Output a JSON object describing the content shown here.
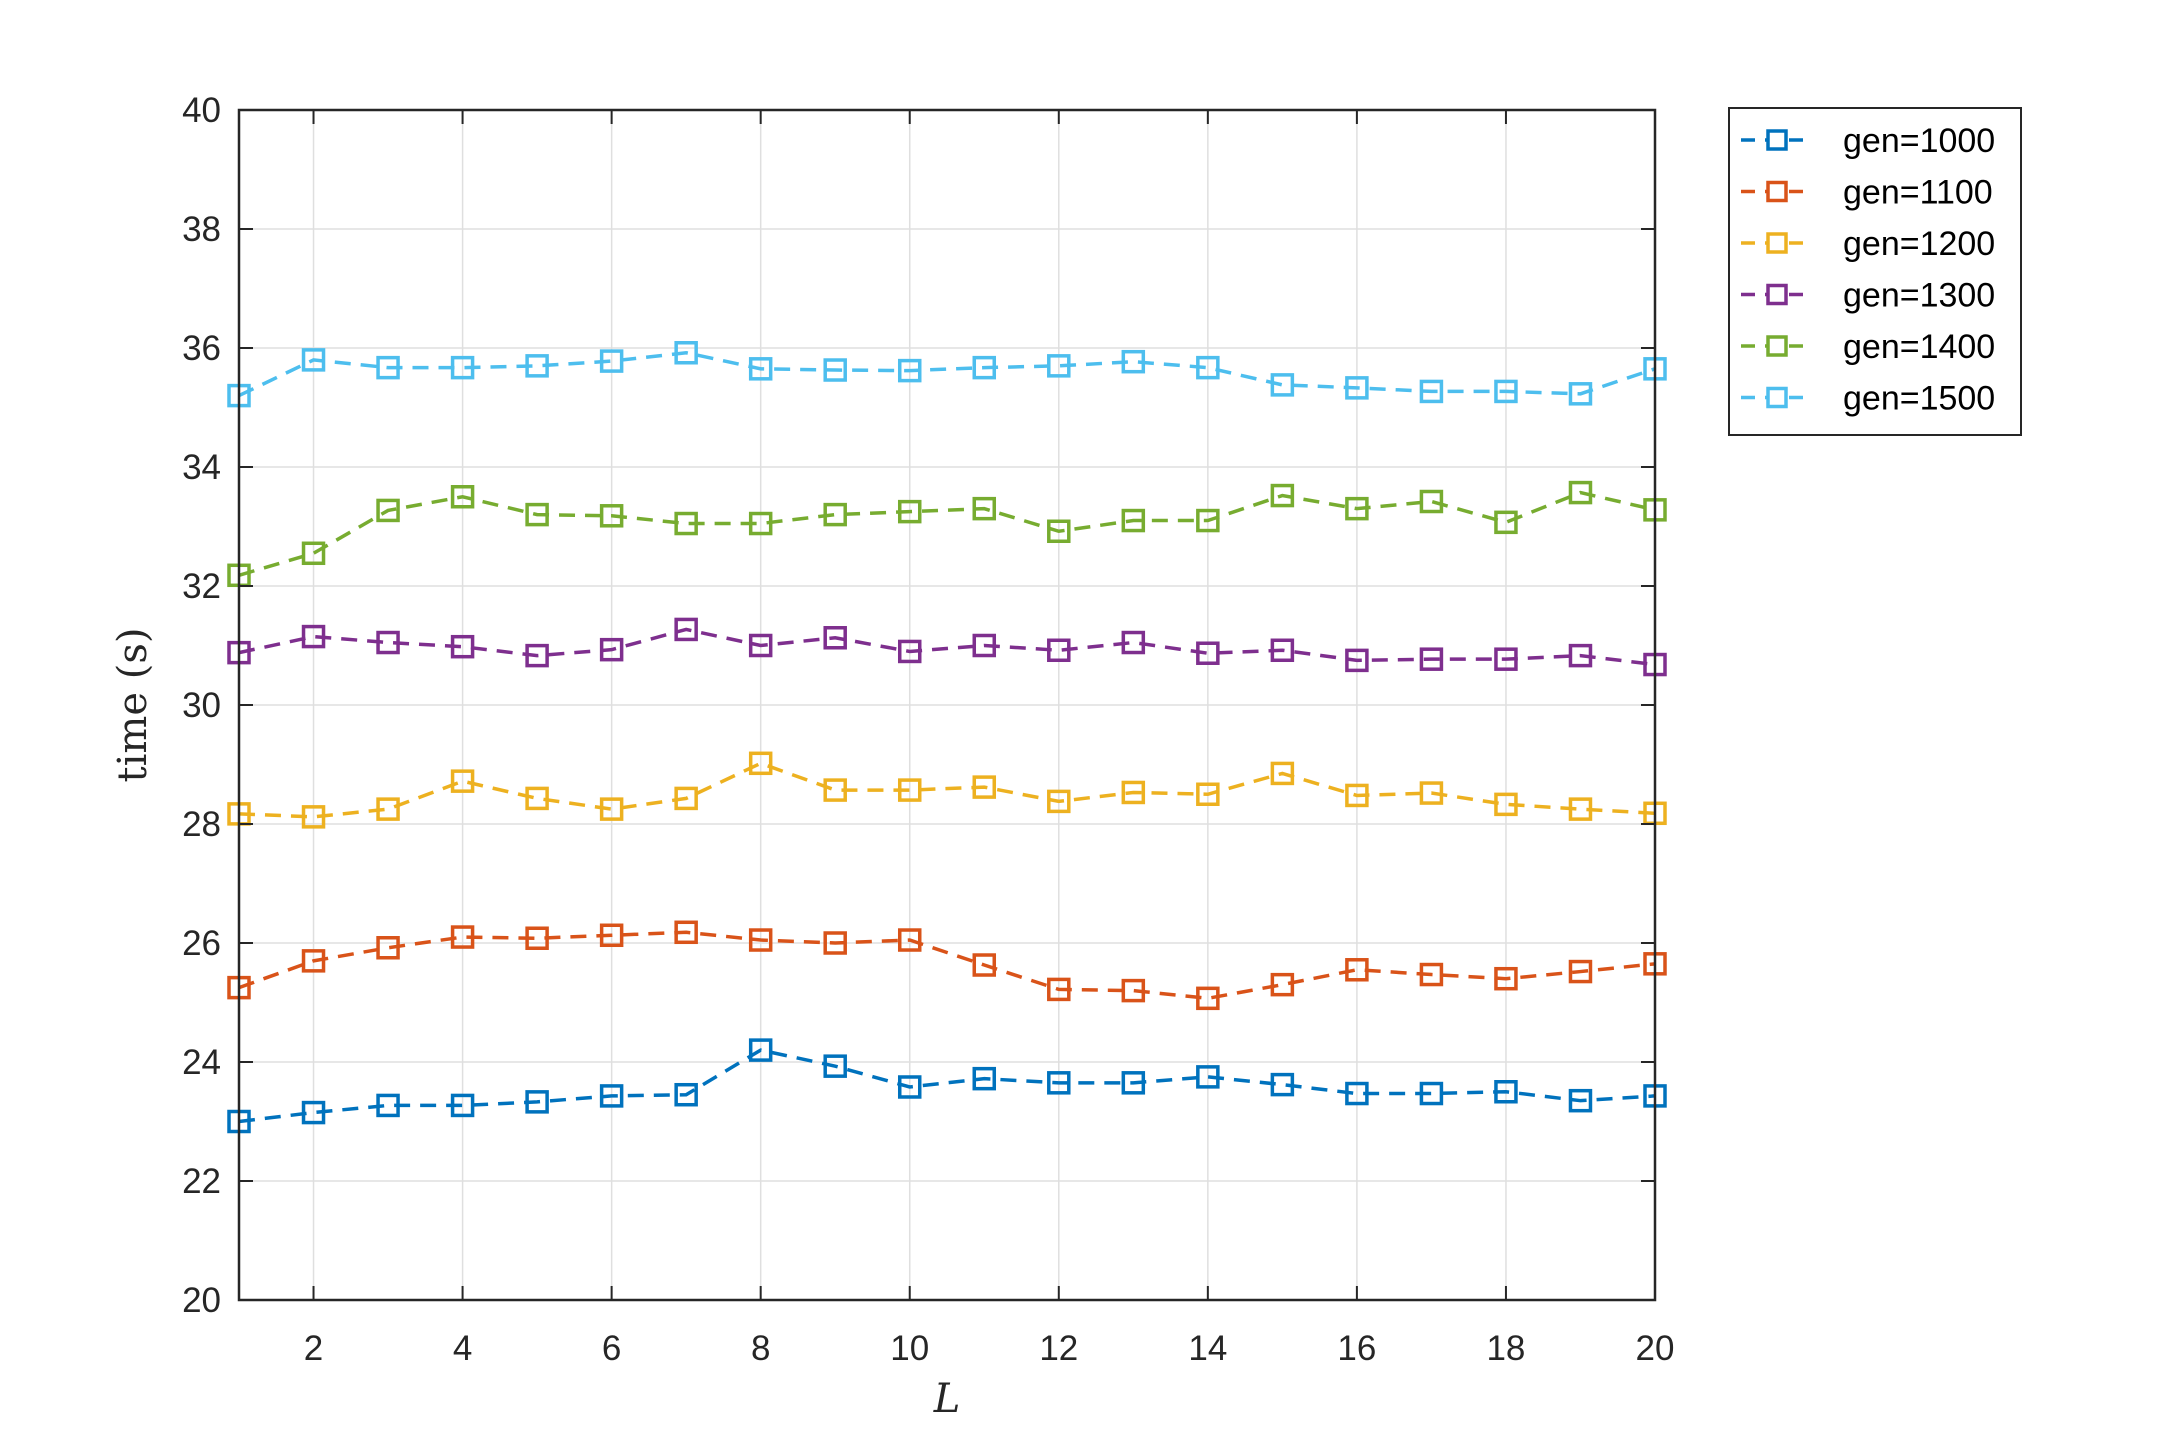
{
  "chart_data": {
    "type": "line",
    "xlabel": "L",
    "ylabel": "time (s)",
    "xlim": [
      1,
      20
    ],
    "ylim": [
      20,
      40
    ],
    "x_ticks": [
      2,
      4,
      6,
      8,
      10,
      12,
      14,
      16,
      18,
      20
    ],
    "y_ticks": [
      20,
      22,
      24,
      26,
      28,
      30,
      32,
      34,
      36,
      38,
      40
    ],
    "grid": true,
    "legend_position": "outside top-right",
    "marker": "square",
    "line_style": "dashed",
    "x": [
      1,
      2,
      3,
      4,
      5,
      6,
      7,
      8,
      9,
      10,
      11,
      12,
      13,
      14,
      15,
      16,
      17,
      18,
      19,
      20
    ],
    "series": [
      {
        "name": "gen=1000",
        "color": "#0072BD",
        "values": [
          23.0,
          23.15,
          23.27,
          23.27,
          23.33,
          23.43,
          23.45,
          24.2,
          23.93,
          23.58,
          23.72,
          23.65,
          23.65,
          23.75,
          23.62,
          23.47,
          23.47,
          23.5,
          23.35,
          23.43
        ]
      },
      {
        "name": "gen=1100",
        "color": "#D95319",
        "values": [
          25.25,
          25.7,
          25.92,
          26.1,
          26.08,
          26.13,
          26.18,
          26.05,
          26.0,
          26.05,
          25.63,
          25.22,
          25.2,
          25.07,
          25.3,
          25.55,
          25.47,
          25.4,
          25.52,
          25.65
        ]
      },
      {
        "name": "gen=1200",
        "color": "#EDB120",
        "values": [
          28.17,
          28.12,
          28.25,
          28.72,
          28.43,
          28.25,
          28.43,
          29.02,
          28.57,
          28.57,
          28.62,
          28.38,
          28.53,
          28.5,
          28.85,
          28.48,
          28.52,
          28.33,
          28.25,
          28.18
        ]
      },
      {
        "name": "gen=1300",
        "color": "#7E2F8E",
        "values": [
          30.88,
          31.15,
          31.05,
          30.98,
          30.83,
          30.93,
          31.27,
          31.0,
          31.13,
          30.9,
          31.0,
          30.92,
          31.05,
          30.87,
          30.92,
          30.75,
          30.77,
          30.77,
          30.83,
          30.68
        ]
      },
      {
        "name": "gen=1400",
        "color": "#77AC30",
        "values": [
          32.18,
          32.55,
          33.27,
          33.5,
          33.2,
          33.18,
          33.05,
          33.05,
          33.2,
          33.25,
          33.3,
          32.92,
          33.1,
          33.1,
          33.52,
          33.3,
          33.42,
          33.07,
          33.57,
          33.28
        ]
      },
      {
        "name": "gen=1500",
        "color": "#4DBEEE",
        "values": [
          35.2,
          35.8,
          35.67,
          35.67,
          35.7,
          35.78,
          35.92,
          35.65,
          35.63,
          35.62,
          35.67,
          35.7,
          35.77,
          35.67,
          35.38,
          35.33,
          35.27,
          35.27,
          35.23,
          35.65
        ]
      }
    ]
  },
  "colors": {
    "axes": "#262626",
    "grid": "#dfdfdf",
    "background": "#ffffff"
  }
}
